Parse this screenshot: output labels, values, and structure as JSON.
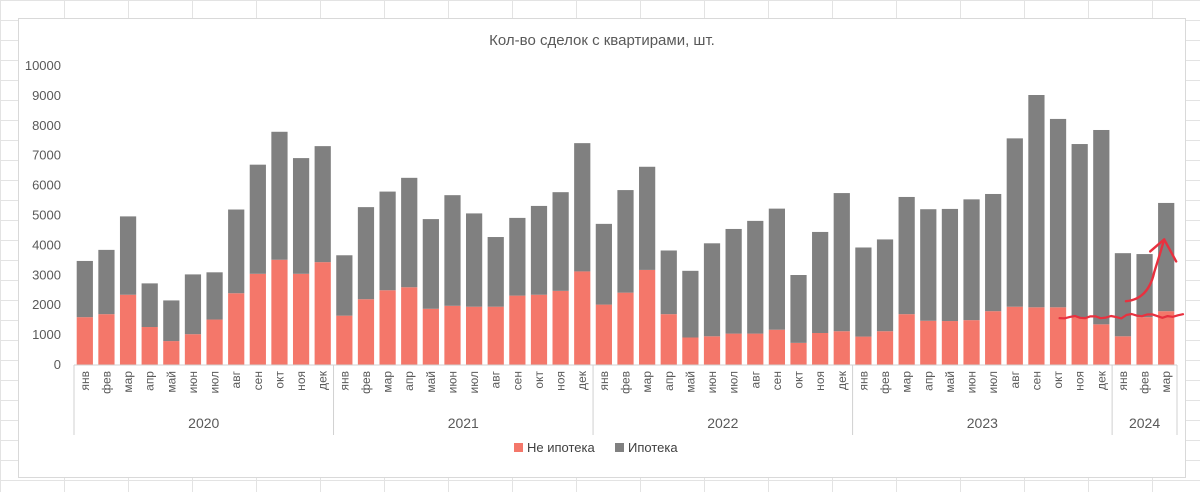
{
  "colors": {
    "non_mortgage": "#f4776a",
    "mortgage": "#808080",
    "annotation": "#e8313f",
    "axis_text": "#595959"
  },
  "chart_data": {
    "type": "bar",
    "stacked": true,
    "title": "Кол-во сделок с квартирами, шт.",
    "ylim": [
      0,
      10000
    ],
    "yticks": [
      0,
      1000,
      2000,
      3000,
      4000,
      5000,
      6000,
      7000,
      8000,
      9000,
      10000
    ],
    "grid": false,
    "legend_position": "bottom",
    "years": [
      {
        "label": "2020",
        "months": [
          "янв",
          "фев",
          "мар",
          "апр",
          "май",
          "июн",
          "июл",
          "авг",
          "сен",
          "окт",
          "ноя",
          "дек"
        ]
      },
      {
        "label": "2021",
        "months": [
          "янв",
          "фев",
          "мар",
          "апр",
          "май",
          "июн",
          "июл",
          "авг",
          "сен",
          "окт",
          "ноя",
          "дек"
        ]
      },
      {
        "label": "2022",
        "months": [
          "янв",
          "фев",
          "мар",
          "апр",
          "май",
          "июн",
          "июл",
          "авг",
          "сен",
          "окт",
          "ноя",
          "дек"
        ]
      },
      {
        "label": "2023",
        "months": [
          "янв",
          "фев",
          "мар",
          "апр",
          "май",
          "июн",
          "июл",
          "авг",
          "сен",
          "окт",
          "ноя",
          "дек"
        ]
      },
      {
        "label": "2024",
        "months": [
          "янв",
          "фев",
          "мар"
        ]
      }
    ],
    "series": [
      {
        "name": "Не ипотека",
        "values": [
          1600,
          1700,
          2350,
          1270,
          800,
          1030,
          1520,
          2400,
          3050,
          3520,
          3050,
          3440,
          1650,
          2200,
          2500,
          2600,
          1880,
          1980,
          1950,
          1950,
          2320,
          2350,
          2480,
          3130,
          2020,
          2420,
          3180,
          1700,
          920,
          960,
          1050,
          1050,
          1180,
          740,
          1070,
          1130,
          950,
          1130,
          1700,
          1480,
          1470,
          1500,
          1800,
          1950,
          1930,
          1930,
          1600,
          1360,
          960,
          1600,
          1800
        ]
      },
      {
        "name": "Ипотека",
        "values": [
          1880,
          2150,
          2620,
          1460,
          1360,
          2000,
          1580,
          2800,
          3650,
          4280,
          3870,
          3880,
          2020,
          3080,
          3300,
          3660,
          3000,
          3700,
          3120,
          2330,
          2600,
          2970,
          3300,
          4290,
          2700,
          3430,
          3450,
          2130,
          2230,
          3110,
          3500,
          3770,
          4050,
          2270,
          3380,
          4620,
          2980,
          3070,
          3920,
          3730,
          3750,
          4040,
          3920,
          5630,
          7100,
          6300,
          5790,
          6500,
          2780,
          2110,
          3620
        ]
      }
    ],
    "annotations": [
      {
        "type": "horizontal-line",
        "from": "2022-ноя",
        "to": "2024-мар",
        "y": 1600
      },
      {
        "type": "arrow-up",
        "at": "2024-мар"
      }
    ]
  }
}
